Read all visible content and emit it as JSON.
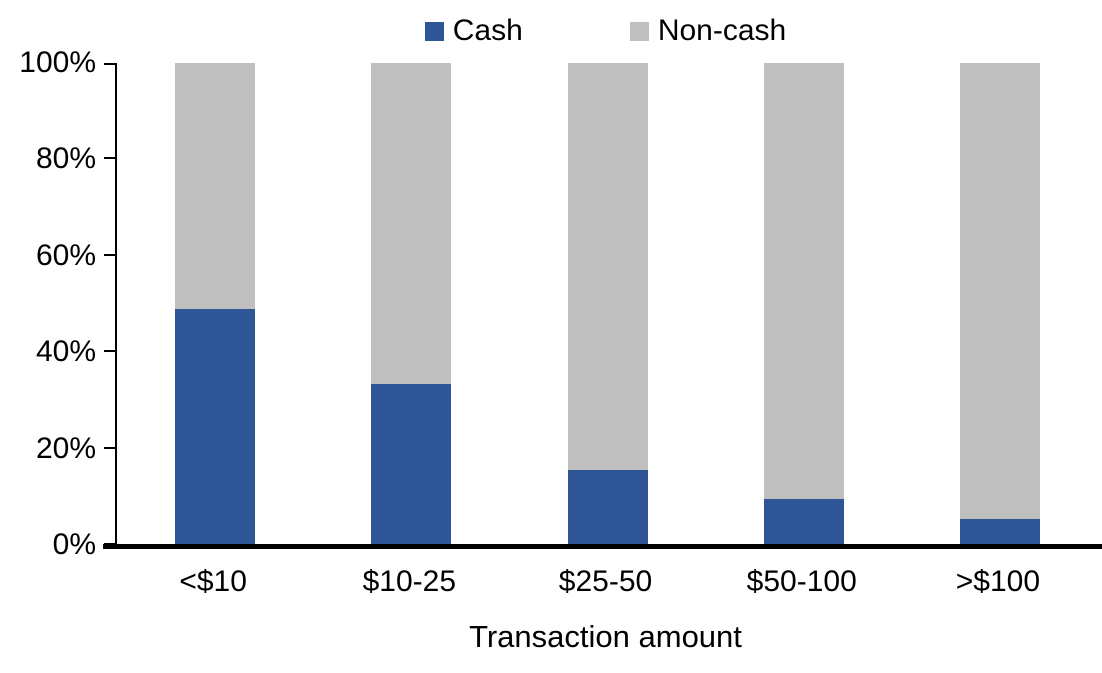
{
  "chart_data": {
    "type": "bar",
    "stacked": true,
    "orientation": "vertical",
    "title": "",
    "xlabel": "Transaction amount",
    "ylabel": "",
    "categories": [
      "<$10",
      "$10-25",
      "$25-50",
      "$50-100",
      ">$100"
    ],
    "series": [
      {
        "name": "Cash",
        "color": "#2E5596",
        "values": [
          49,
          33.5,
          15.5,
          9.5,
          5.5
        ]
      },
      {
        "name": "Non-cash",
        "color": "#BFBFBF",
        "values": [
          51,
          66.5,
          84.5,
          90.5,
          94.5
        ]
      }
    ],
    "ylim": [
      0,
      100
    ],
    "ytick_labels": [
      "0%",
      "20%",
      "40%",
      "60%",
      "80%",
      "100%"
    ],
    "grid": false,
    "legend_position": "top-center",
    "axis_color": "#000000",
    "text_color": "#000000",
    "background_color": "#FFFFFF"
  }
}
